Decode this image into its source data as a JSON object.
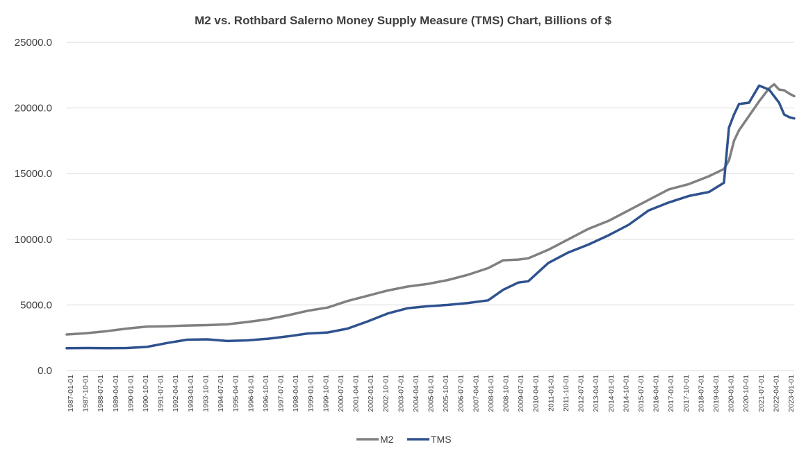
{
  "chart_data": {
    "type": "line",
    "title": "M2 vs. Rothbard Salerno Money Supply Measure (TMS) Chart, Billions of $",
    "xlabel": "",
    "ylabel": "",
    "ylim": [
      0,
      25000
    ],
    "yticks": [
      0,
      5000,
      10000,
      15000,
      20000,
      25000
    ],
    "ytick_labels": [
      "0.0",
      "5000.0",
      "10000.0",
      "15000.0",
      "20000.0",
      "25000.0"
    ],
    "grid": true,
    "legend_position": "bottom",
    "xtick_labels": [
      "1987-01-01",
      "1987-10-01",
      "1988-07-01",
      "1989-04-01",
      "1990-01-01",
      "1990-10-01",
      "1991-07-01",
      "1992-04-01",
      "1993-01-01",
      "1993-10-01",
      "1994-07-01",
      "1995-04-01",
      "1996-01-01",
      "1996-10-01",
      "1997-07-01",
      "1998-04-01",
      "1999-01-01",
      "1999-10-01",
      "2000-07-01",
      "2001-04-01",
      "2002-01-01",
      "2002-10-01",
      "2003-07-01",
      "2004-04-01",
      "2005-01-01",
      "2005-10-01",
      "2006-07-01",
      "2007-04-01",
      "2008-01-01",
      "2008-10-01",
      "2009-07-01",
      "2010-04-01",
      "2011-01-01",
      "2011-10-01",
      "2012-07-01",
      "2013-04-01",
      "2014-01-01",
      "2014-10-01",
      "2015-07-01",
      "2016-04-01",
      "2017-01-01",
      "2017-10-01",
      "2018-07-01",
      "2019-04-01",
      "2020-01-01",
      "2020-10-01",
      "2021-07-01",
      "2022-04-01",
      "2023-01-01"
    ],
    "x": [
      1987.0,
      1988.0,
      1989.0,
      1990.0,
      1991.0,
      1992.0,
      1993.0,
      1994.0,
      1995.0,
      1996.0,
      1997.0,
      1998.0,
      1999.0,
      2000.0,
      2001.0,
      2002.0,
      2003.0,
      2004.0,
      2005.0,
      2006.0,
      2007.0,
      2008.0,
      2008.75,
      2009.5,
      2010.0,
      2011.0,
      2012.0,
      2013.0,
      2014.0,
      2015.0,
      2016.0,
      2017.0,
      2018.0,
      2019.0,
      2019.75,
      2020.0,
      2020.25,
      2020.5,
      2021.0,
      2021.5,
      2022.0,
      2022.25,
      2022.5,
      2022.75,
      2023.0,
      2023.25
    ],
    "series": [
      {
        "name": "M2",
        "color": "#808080",
        "values": [
          2750,
          2850,
          3000,
          3200,
          3350,
          3380,
          3430,
          3460,
          3520,
          3700,
          3900,
          4200,
          4550,
          4800,
          5300,
          5700,
          6100,
          6400,
          6600,
          6900,
          7300,
          7800,
          8400,
          8450,
          8550,
          9200,
          10000,
          10800,
          11400,
          12200,
          13000,
          13800,
          14200,
          14800,
          15350,
          16000,
          17500,
          18300,
          19400,
          20500,
          21500,
          21800,
          21400,
          21350,
          21100,
          20900
        ]
      },
      {
        "name": "TMS",
        "color": "#2F528F",
        "values": [
          1700,
          1720,
          1700,
          1720,
          1800,
          2100,
          2350,
          2380,
          2250,
          2300,
          2420,
          2600,
          2820,
          2900,
          3200,
          3750,
          4350,
          4750,
          4900,
          5000,
          5150,
          5350,
          6150,
          6700,
          6800,
          8200,
          9000,
          9600,
          10300,
          11100,
          12200,
          12800,
          13300,
          13600,
          14300,
          18500,
          19500,
          20300,
          20400,
          21700,
          21400,
          20900,
          20400,
          19500,
          19300,
          19200
        ]
      }
    ]
  }
}
